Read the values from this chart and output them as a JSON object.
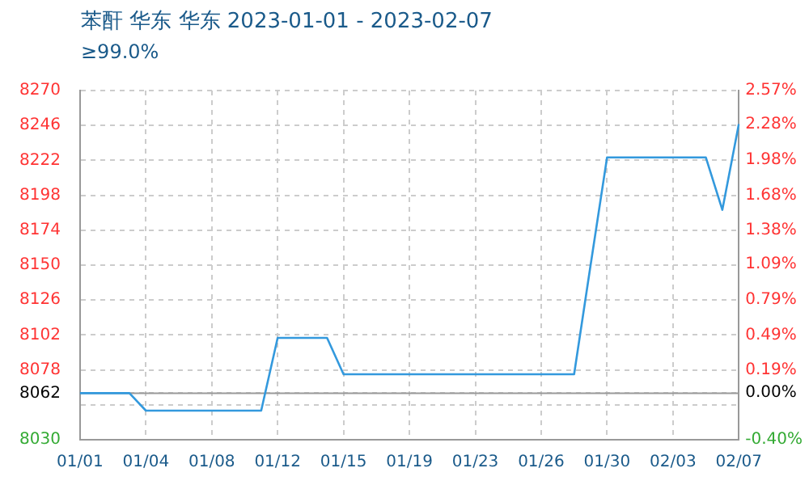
{
  "chart_data": {
    "type": "line",
    "title": "苯酐 华东 华东 2023-01-01 - 2023-02-07",
    "subtitle": "≥99.0%",
    "categories": [
      "01/01",
      null,
      null,
      null,
      "01/04",
      null,
      null,
      null,
      "01/08",
      null,
      null,
      null,
      "01/12",
      null,
      null,
      null,
      "01/15",
      null,
      null,
      null,
      "01/19",
      null,
      null,
      null,
      "01/23",
      null,
      null,
      null,
      "01/26",
      null,
      null,
      null,
      "01/30",
      null,
      null,
      null,
      "02/03",
      null,
      null,
      null,
      "02/07"
    ],
    "series": [
      {
        "color": "#3399dd",
        "values": [
          8062,
          8062,
          8062,
          8062,
          8050,
          8050,
          8050,
          8050,
          8050,
          8050,
          8050,
          8050,
          8100,
          8100,
          8100,
          8100,
          8075,
          8075,
          8075,
          8075,
          8075,
          8075,
          8075,
          8075,
          8075,
          8075,
          8075,
          8075,
          8075,
          8075,
          8075,
          8150,
          8224,
          8224,
          8224,
          8224,
          8224,
          8224,
          8224,
          8188,
          8247
        ]
      }
    ],
    "ylim": [
      8030,
      8270
    ],
    "yticks": [
      8030,
      {
        "value": 8054,
        "label": null
      },
      8062,
      8078,
      8102,
      8126,
      8150,
      8174,
      8198,
      8222,
      8246,
      8270
    ],
    "y2lim": [
      -0.4,
      2.57
    ],
    "y2ticks": [
      {
        "value": -0.4,
        "label": "-0.40%"
      },
      {
        "value": 0,
        "label": "0.00%"
      },
      {
        "value": 0.19,
        "label": "0.19%"
      },
      {
        "value": 0.49,
        "label": "0.49%"
      },
      {
        "value": 0.79,
        "label": "0.79%"
      },
      {
        "value": 1.09,
        "label": "1.09%"
      },
      {
        "value": 1.38,
        "label": "1.38%"
      },
      {
        "value": 1.68,
        "label": "1.68%"
      },
      {
        "value": 1.98,
        "label": "1.98%"
      },
      {
        "value": 2.28,
        "label": "2.28%"
      },
      {
        "value": 2.57,
        "label": "2.57%"
      }
    ],
    "ref_lines": [
      {
        "axis": "y",
        "value": 8062,
        "color": "#999999",
        "line_style": "solid"
      }
    ],
    "grid": true,
    "legend": false,
    "marker": "none",
    "line_style": "solid"
  }
}
